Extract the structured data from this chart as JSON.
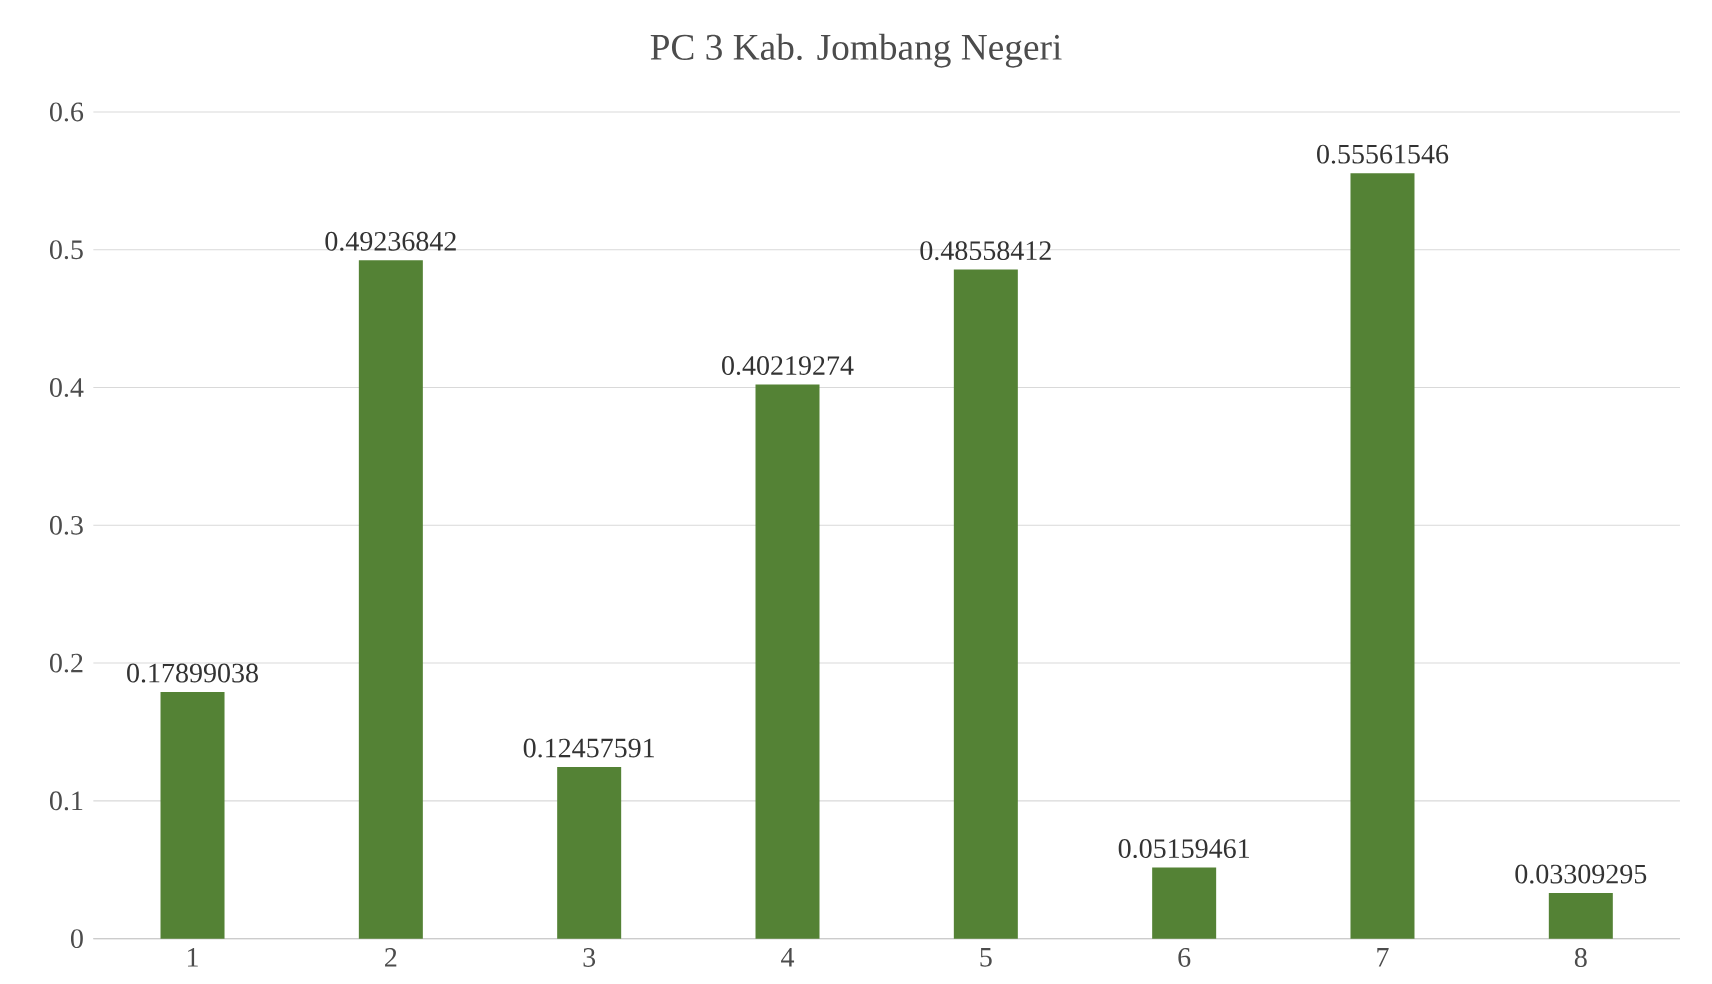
{
  "chart_data": {
    "type": "bar",
    "title": "PC 3 Kab. Jombang Negeri",
    "categories": [
      "1",
      "2",
      "3",
      "4",
      "5",
      "6",
      "7",
      "8"
    ],
    "values": [
      0.17899038,
      0.49236842,
      0.12457591,
      0.40219274,
      0.48558412,
      0.05159461,
      0.55561546,
      0.03309295
    ],
    "color": "#548235",
    "ylim": [
      0,
      0.6
    ],
    "yticks": [
      0,
      0.1,
      0.2,
      0.3,
      0.4,
      0.5,
      0.6
    ],
    "grid": "y",
    "data_labels": true
  }
}
